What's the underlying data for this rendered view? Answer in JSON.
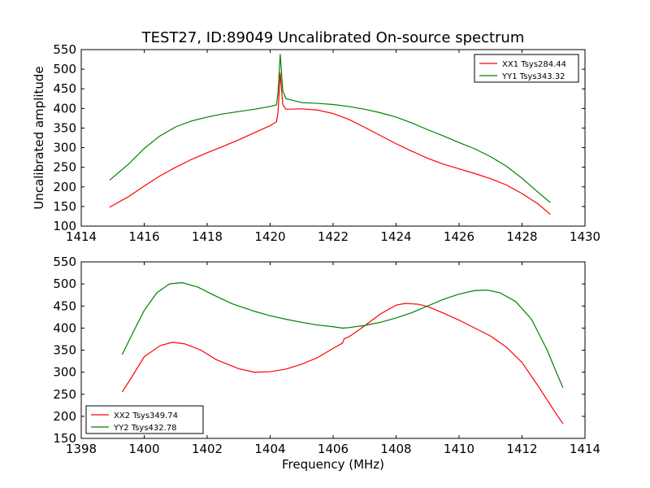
{
  "chart_data": {
    "type": "line",
    "title": "TEST27, ID:89049 Uncalibrated On-source spectrum",
    "panels": [
      {
        "ylabel": "Uncalibrated amplitude",
        "xlabel": "",
        "xlim": [
          1414,
          1430
        ],
        "ylim": [
          100,
          550
        ],
        "xticks": [
          1414,
          1416,
          1418,
          1420,
          1422,
          1424,
          1426,
          1428,
          1430
        ],
        "yticks": [
          100,
          150,
          200,
          250,
          300,
          350,
          400,
          450,
          500,
          550
        ],
        "legend_position": "top-right",
        "grid": false,
        "series": [
          {
            "name": "XX1 Tsys284.44",
            "color": "#ff0000",
            "points": [
              [
                1414.9,
                148
              ],
              [
                1415.5,
                175
              ],
              [
                1416,
                202
              ],
              [
                1416.5,
                228
              ],
              [
                1417,
                250
              ],
              [
                1417.5,
                270
              ],
              [
                1418,
                287
              ],
              [
                1418.5,
                303
              ],
              [
                1419,
                320
              ],
              [
                1419.5,
                338
              ],
              [
                1420,
                356
              ],
              [
                1420.2,
                366
              ],
              [
                1420.25,
                390
              ],
              [
                1420.32,
                490
              ],
              [
                1420.4,
                410
              ],
              [
                1420.5,
                398
              ],
              [
                1421,
                399
              ],
              [
                1421.5,
                396
              ],
              [
                1422,
                387
              ],
              [
                1422.5,
                372
              ],
              [
                1423,
                352
              ],
              [
                1423.5,
                331
              ],
              [
                1424,
                310
              ],
              [
                1424.5,
                291
              ],
              [
                1425,
                273
              ],
              [
                1425.5,
                258
              ],
              [
                1426,
                246
              ],
              [
                1426.5,
                234
              ],
              [
                1427,
                221
              ],
              [
                1427.5,
                205
              ],
              [
                1428,
                183
              ],
              [
                1428.5,
                157
              ],
              [
                1428.9,
                130
              ]
            ]
          },
          {
            "name": "YY1 Tsys343.32",
            "color": "#008000",
            "points": [
              [
                1414.9,
                217
              ],
              [
                1415.5,
                258
              ],
              [
                1416,
                298
              ],
              [
                1416.5,
                330
              ],
              [
                1417,
                353
              ],
              [
                1417.5,
                368
              ],
              [
                1418,
                378
              ],
              [
                1418.5,
                386
              ],
              [
                1419,
                392
              ],
              [
                1419.5,
                398
              ],
              [
                1420,
                405
              ],
              [
                1420.2,
                409
              ],
              [
                1420.25,
                440
              ],
              [
                1420.32,
                538
              ],
              [
                1420.4,
                445
              ],
              [
                1420.5,
                425
              ],
              [
                1421,
                415
              ],
              [
                1421.5,
                413
              ],
              [
                1422,
                410
              ],
              [
                1422.5,
                405
              ],
              [
                1423,
                398
              ],
              [
                1423.5,
                389
              ],
              [
                1424,
                378
              ],
              [
                1424.5,
                363
              ],
              [
                1425,
                346
              ],
              [
                1425.5,
                330
              ],
              [
                1426,
                313
              ],
              [
                1426.5,
                297
              ],
              [
                1427,
                277
              ],
              [
                1427.5,
                253
              ],
              [
                1428,
                222
              ],
              [
                1428.5,
                187
              ],
              [
                1428.9,
                160
              ]
            ]
          }
        ]
      },
      {
        "ylabel": "",
        "xlabel": "Frequency (MHz)",
        "xlim": [
          1398,
          1414
        ],
        "ylim": [
          150,
          550
        ],
        "xticks": [
          1398,
          1400,
          1402,
          1404,
          1406,
          1408,
          1410,
          1412,
          1414
        ],
        "yticks": [
          150,
          200,
          250,
          300,
          350,
          400,
          450,
          500,
          550
        ],
        "legend_position": "bottom-left",
        "grid": false,
        "series": [
          {
            "name": "XX2 Tsys349.74",
            "color": "#ff0000",
            "points": [
              [
                1399.3,
                255
              ],
              [
                1399.7,
                300
              ],
              [
                1400,
                335
              ],
              [
                1400.5,
                360
              ],
              [
                1400.9,
                368
              ],
              [
                1401.3,
                364
              ],
              [
                1401.8,
                350
              ],
              [
                1402.3,
                328
              ],
              [
                1403,
                308
              ],
              [
                1403.5,
                300
              ],
              [
                1404,
                301
              ],
              [
                1404.5,
                307
              ],
              [
                1405,
                318
              ],
              [
                1405.5,
                333
              ],
              [
                1406,
                354
              ],
              [
                1406.3,
                366
              ],
              [
                1406.35,
                376
              ],
              [
                1406.5,
                380
              ],
              [
                1407,
                405
              ],
              [
                1407.5,
                432
              ],
              [
                1408,
                452
              ],
              [
                1408.3,
                456
              ],
              [
                1408.7,
                454
              ],
              [
                1409,
                449
              ],
              [
                1409.5,
                434
              ],
              [
                1410,
                418
              ],
              [
                1410.5,
                400
              ],
              [
                1411,
                382
              ],
              [
                1411.5,
                357
              ],
              [
                1412,
                322
              ],
              [
                1412.5,
                270
              ],
              [
                1413,
                215
              ],
              [
                1413.3,
                183
              ]
            ]
          },
          {
            "name": "YY2 Tsys432.78",
            "color": "#008000",
            "points": [
              [
                1399.3,
                340
              ],
              [
                1399.7,
                398
              ],
              [
                1400,
                440
              ],
              [
                1400.4,
                480
              ],
              [
                1400.8,
                500
              ],
              [
                1401.2,
                503
              ],
              [
                1401.7,
                493
              ],
              [
                1402.2,
                475
              ],
              [
                1402.8,
                455
              ],
              [
                1403.5,
                438
              ],
              [
                1404,
                428
              ],
              [
                1404.5,
                420
              ],
              [
                1405,
                413
              ],
              [
                1405.5,
                407
              ],
              [
                1406,
                403
              ],
              [
                1406.3,
                400
              ],
              [
                1406.5,
                401
              ],
              [
                1407,
                406
              ],
              [
                1407.5,
                413
              ],
              [
                1408,
                423
              ],
              [
                1408.5,
                435
              ],
              [
                1409,
                450
              ],
              [
                1409.5,
                465
              ],
              [
                1410,
                477
              ],
              [
                1410.5,
                485
              ],
              [
                1410.9,
                486
              ],
              [
                1411.3,
                480
              ],
              [
                1411.8,
                460
              ],
              [
                1412.3,
                420
              ],
              [
                1412.8,
                350
              ],
              [
                1413.1,
                298
              ],
              [
                1413.3,
                265
              ]
            ]
          }
        ]
      }
    ]
  }
}
